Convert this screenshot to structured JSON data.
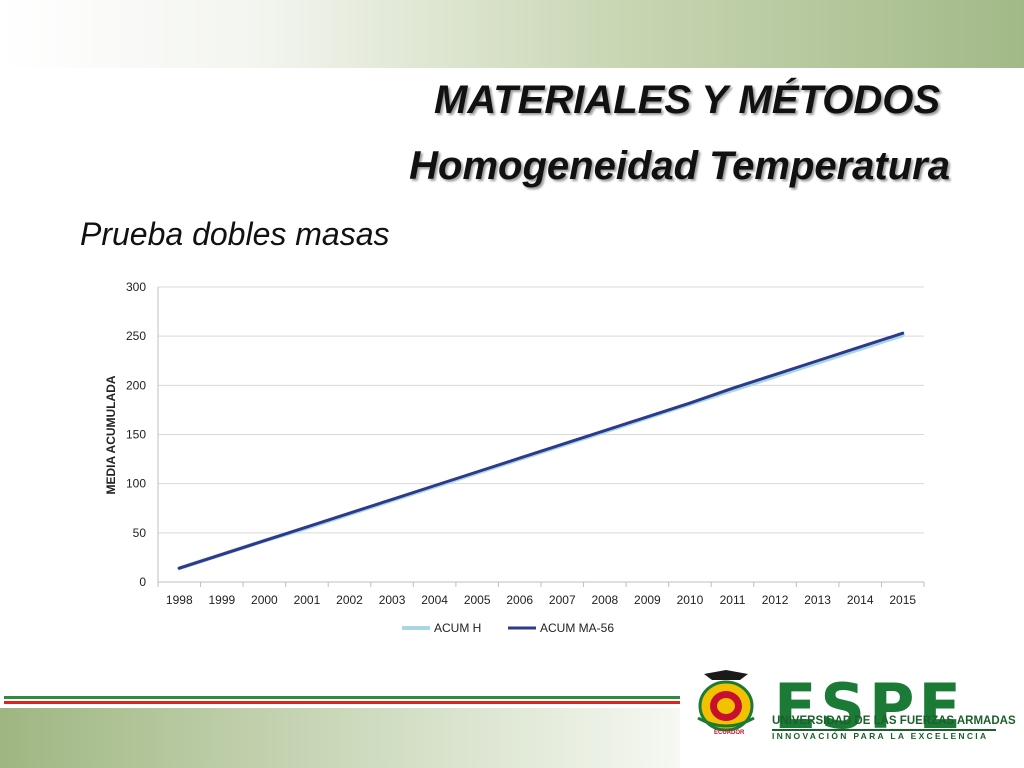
{
  "slide": {
    "title": "MATERIALES Y MÉTODOS",
    "subtitle": "Homogeneidad  Temperatura",
    "section": "Prueba dobles masas"
  },
  "logo": {
    "name": "ESPE",
    "university": "UNIVERSIDAD DE LAS FUERZAS ARMADAS",
    "tagline": "INNOVACIÓN PARA LA EXCELENCIA",
    "seal_label": "ECUADOR"
  },
  "colors": {
    "series_acum_h": "#a9d6e5",
    "series_acum_ma56": "#2d3a8c",
    "gridline": "#d9d9d9",
    "brand_green": "#1b7a36",
    "stripe_red": "#e0231f"
  },
  "chart_data": {
    "type": "line",
    "title": "",
    "xlabel": "",
    "ylabel": "MEDIA ACUMULADA",
    "categories": [
      "1998",
      "1999",
      "2000",
      "2001",
      "2002",
      "2003",
      "2004",
      "2005",
      "2006",
      "2007",
      "2008",
      "2009",
      "2010",
      "2011",
      "2012",
      "2013",
      "2014",
      "2015"
    ],
    "ylim": [
      0,
      300
    ],
    "yticks": [
      0,
      50,
      100,
      150,
      200,
      250,
      300
    ],
    "grid": true,
    "legend": "bottom",
    "series": [
      {
        "name": "ACUM H",
        "values": [
          14,
          28,
          42,
          55,
          69,
          83,
          97,
          111,
          125,
          139,
          153,
          167,
          181,
          195,
          209,
          223,
          237,
          251
        ]
      },
      {
        "name": "ACUM MA-56",
        "values": [
          14,
          28,
          42,
          56,
          70,
          84,
          98,
          112,
          126,
          140,
          154,
          168,
          182,
          197,
          211,
          225,
          239,
          253
        ]
      }
    ]
  }
}
